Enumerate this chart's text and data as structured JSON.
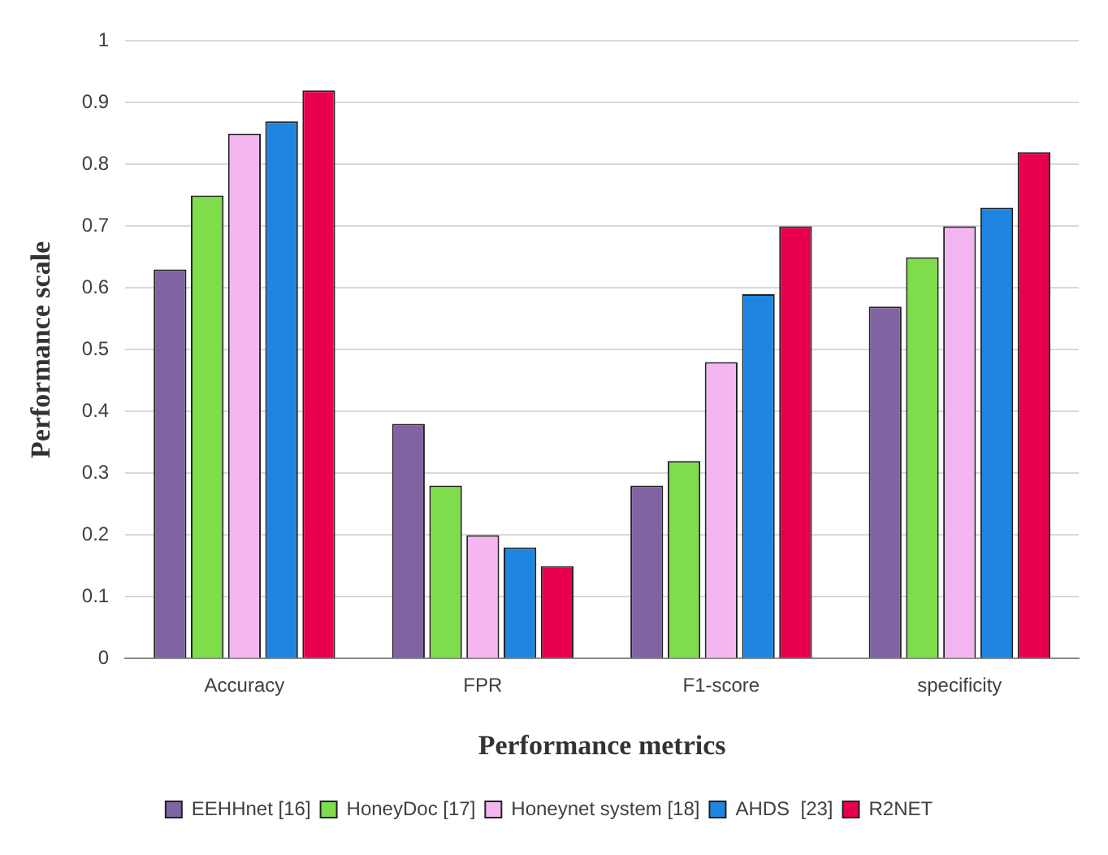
{
  "chart_data": {
    "type": "bar",
    "xlabel": "Performance metrics",
    "ylabel": "Performance scale",
    "categories": [
      "Accuracy",
      "FPR",
      "F1-score",
      "specificity"
    ],
    "series": [
      {
        "name": "EEHHnet [16]",
        "color": "#8064a2",
        "values": [
          0.63,
          0.38,
          0.28,
          0.57
        ]
      },
      {
        "name": "HoneyDoc [17]",
        "color": "#7fdc4a",
        "values": [
          0.75,
          0.28,
          0.32,
          0.65
        ]
      },
      {
        "name": "Honeynet system [18]",
        "color": "#f4b6f0",
        "values": [
          0.85,
          0.2,
          0.48,
          0.7
        ]
      },
      {
        "name": "AHDS  [23]",
        "color": "#1e86e0",
        "values": [
          0.87,
          0.18,
          0.59,
          0.73
        ]
      },
      {
        "name": "R2NET",
        "color": "#e8004f",
        "values": [
          0.92,
          0.15,
          0.7,
          0.82
        ]
      }
    ],
    "ylim": [
      0,
      1
    ],
    "yticks": [
      0,
      0.1,
      0.2,
      0.3,
      0.4,
      0.5,
      0.6,
      0.7,
      0.8,
      0.9,
      1
    ],
    "grid": "y",
    "legend": "bottom"
  }
}
